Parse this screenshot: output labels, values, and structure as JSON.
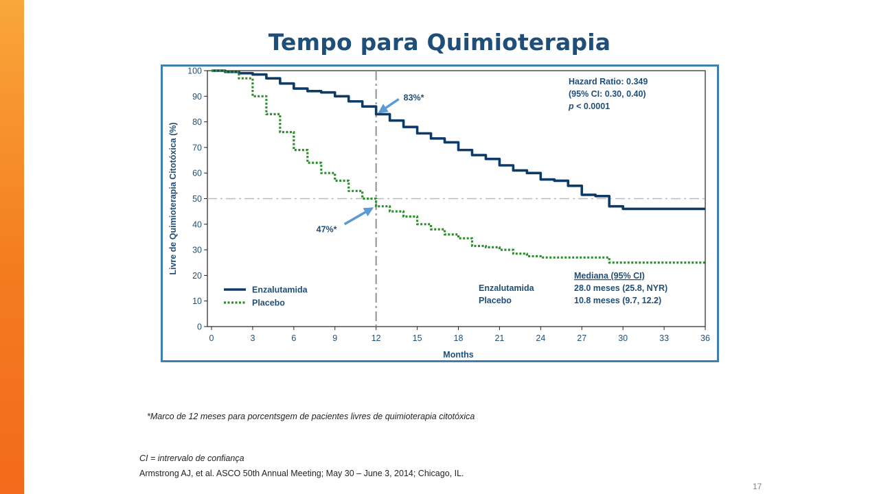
{
  "slide": {
    "title": "Tempo para Quimioterapia",
    "footnote": "*Marco de 12 meses para porcentsgem de pacientes livres de quimioterapia citotóxica",
    "abbreviation": "CI = intrervalo de confiança",
    "reference": "Armstrong AJ, et al. ASCO 50th Annual Meeting; May 30 – June 3, 2014; Chicago, IL.",
    "page_number": "17"
  },
  "chart_data": {
    "type": "line",
    "step": true,
    "xlabel": "Months",
    "ylabel": "Livre de Quimioterapia Citotóxica (%)",
    "xlim": [
      0,
      36
    ],
    "ylim": [
      0,
      100
    ],
    "xticks": [
      0,
      3,
      6,
      9,
      12,
      15,
      18,
      21,
      24,
      27,
      30,
      33,
      36
    ],
    "yticks": [
      0,
      10,
      20,
      30,
      40,
      50,
      60,
      70,
      80,
      90,
      100
    ],
    "reference_lines": {
      "x": 12,
      "y": 50
    },
    "series": [
      {
        "name": "Enzalutamida",
        "color": "#0d3a66",
        "dash": "solid",
        "points": [
          [
            0,
            100
          ],
          [
            1,
            99.5
          ],
          [
            2,
            99
          ],
          [
            3,
            98.5
          ],
          [
            4,
            97
          ],
          [
            5,
            95
          ],
          [
            6,
            93
          ],
          [
            7,
            92
          ],
          [
            8,
            91.5
          ],
          [
            9,
            90
          ],
          [
            10,
            88
          ],
          [
            11,
            86
          ],
          [
            12,
            83
          ],
          [
            13,
            80.5
          ],
          [
            14,
            78
          ],
          [
            15,
            75.5
          ],
          [
            16,
            73.5
          ],
          [
            17,
            72
          ],
          [
            18,
            69
          ],
          [
            19,
            67
          ],
          [
            20,
            65.5
          ],
          [
            21,
            63
          ],
          [
            22,
            61
          ],
          [
            23,
            60
          ],
          [
            24,
            57.5
          ],
          [
            25,
            57
          ],
          [
            26,
            55
          ],
          [
            27,
            51.5
          ],
          [
            28,
            51
          ],
          [
            29,
            47
          ],
          [
            30,
            46
          ],
          [
            33,
            46
          ],
          [
            36,
            46
          ]
        ]
      },
      {
        "name": "Placebo",
        "color": "#2e8b2e",
        "dash": "dotted",
        "points": [
          [
            0,
            100
          ],
          [
            1,
            99.5
          ],
          [
            2,
            97
          ],
          [
            3,
            90
          ],
          [
            4,
            83
          ],
          [
            5,
            76
          ],
          [
            6,
            69
          ],
          [
            7,
            64
          ],
          [
            8,
            60
          ],
          [
            9,
            57
          ],
          [
            10,
            53
          ],
          [
            11,
            50
          ],
          [
            12,
            47
          ],
          [
            13,
            45
          ],
          [
            14,
            43
          ],
          [
            15,
            40
          ],
          [
            16,
            38
          ],
          [
            17,
            36
          ],
          [
            18,
            34.5
          ],
          [
            19,
            31.5
          ],
          [
            20,
            31
          ],
          [
            21,
            30
          ],
          [
            22,
            28.5
          ],
          [
            23,
            27.5
          ],
          [
            24,
            27
          ],
          [
            25,
            27
          ],
          [
            26,
            27
          ],
          [
            27,
            27
          ],
          [
            28,
            27
          ],
          [
            29,
            25
          ],
          [
            30,
            25
          ],
          [
            33,
            25
          ],
          [
            36,
            25
          ]
        ]
      }
    ],
    "annotations": [
      {
        "label": "83%*",
        "x": 12,
        "y": 83
      },
      {
        "label": "47%*",
        "x": 12,
        "y": 47
      }
    ],
    "stats": {
      "hr_line1": "Hazard Ratio: 0.349",
      "hr_line2": "(95% CI: 0.30, 0.40)",
      "p_italic": "p",
      "p_rest": " < 0.0001"
    },
    "median_table": {
      "header": "Mediana (95% CI)",
      "rows": [
        {
          "label": "Enzalutamida",
          "value": "28.0 meses (25.8, NYR)"
        },
        {
          "label": "Placebo",
          "value": "10.8 meses (9.7, 12.2)"
        }
      ]
    },
    "legend": {
      "position": "bottom-left",
      "items": [
        "Enzalutamida",
        "Placebo"
      ]
    },
    "colors": {
      "title": "#1f4e79",
      "frame": "#3d7fb0",
      "axis_text": "#1f4e79",
      "arrow": "#5b9bd5",
      "reference_line": "#bbbbbb"
    }
  }
}
